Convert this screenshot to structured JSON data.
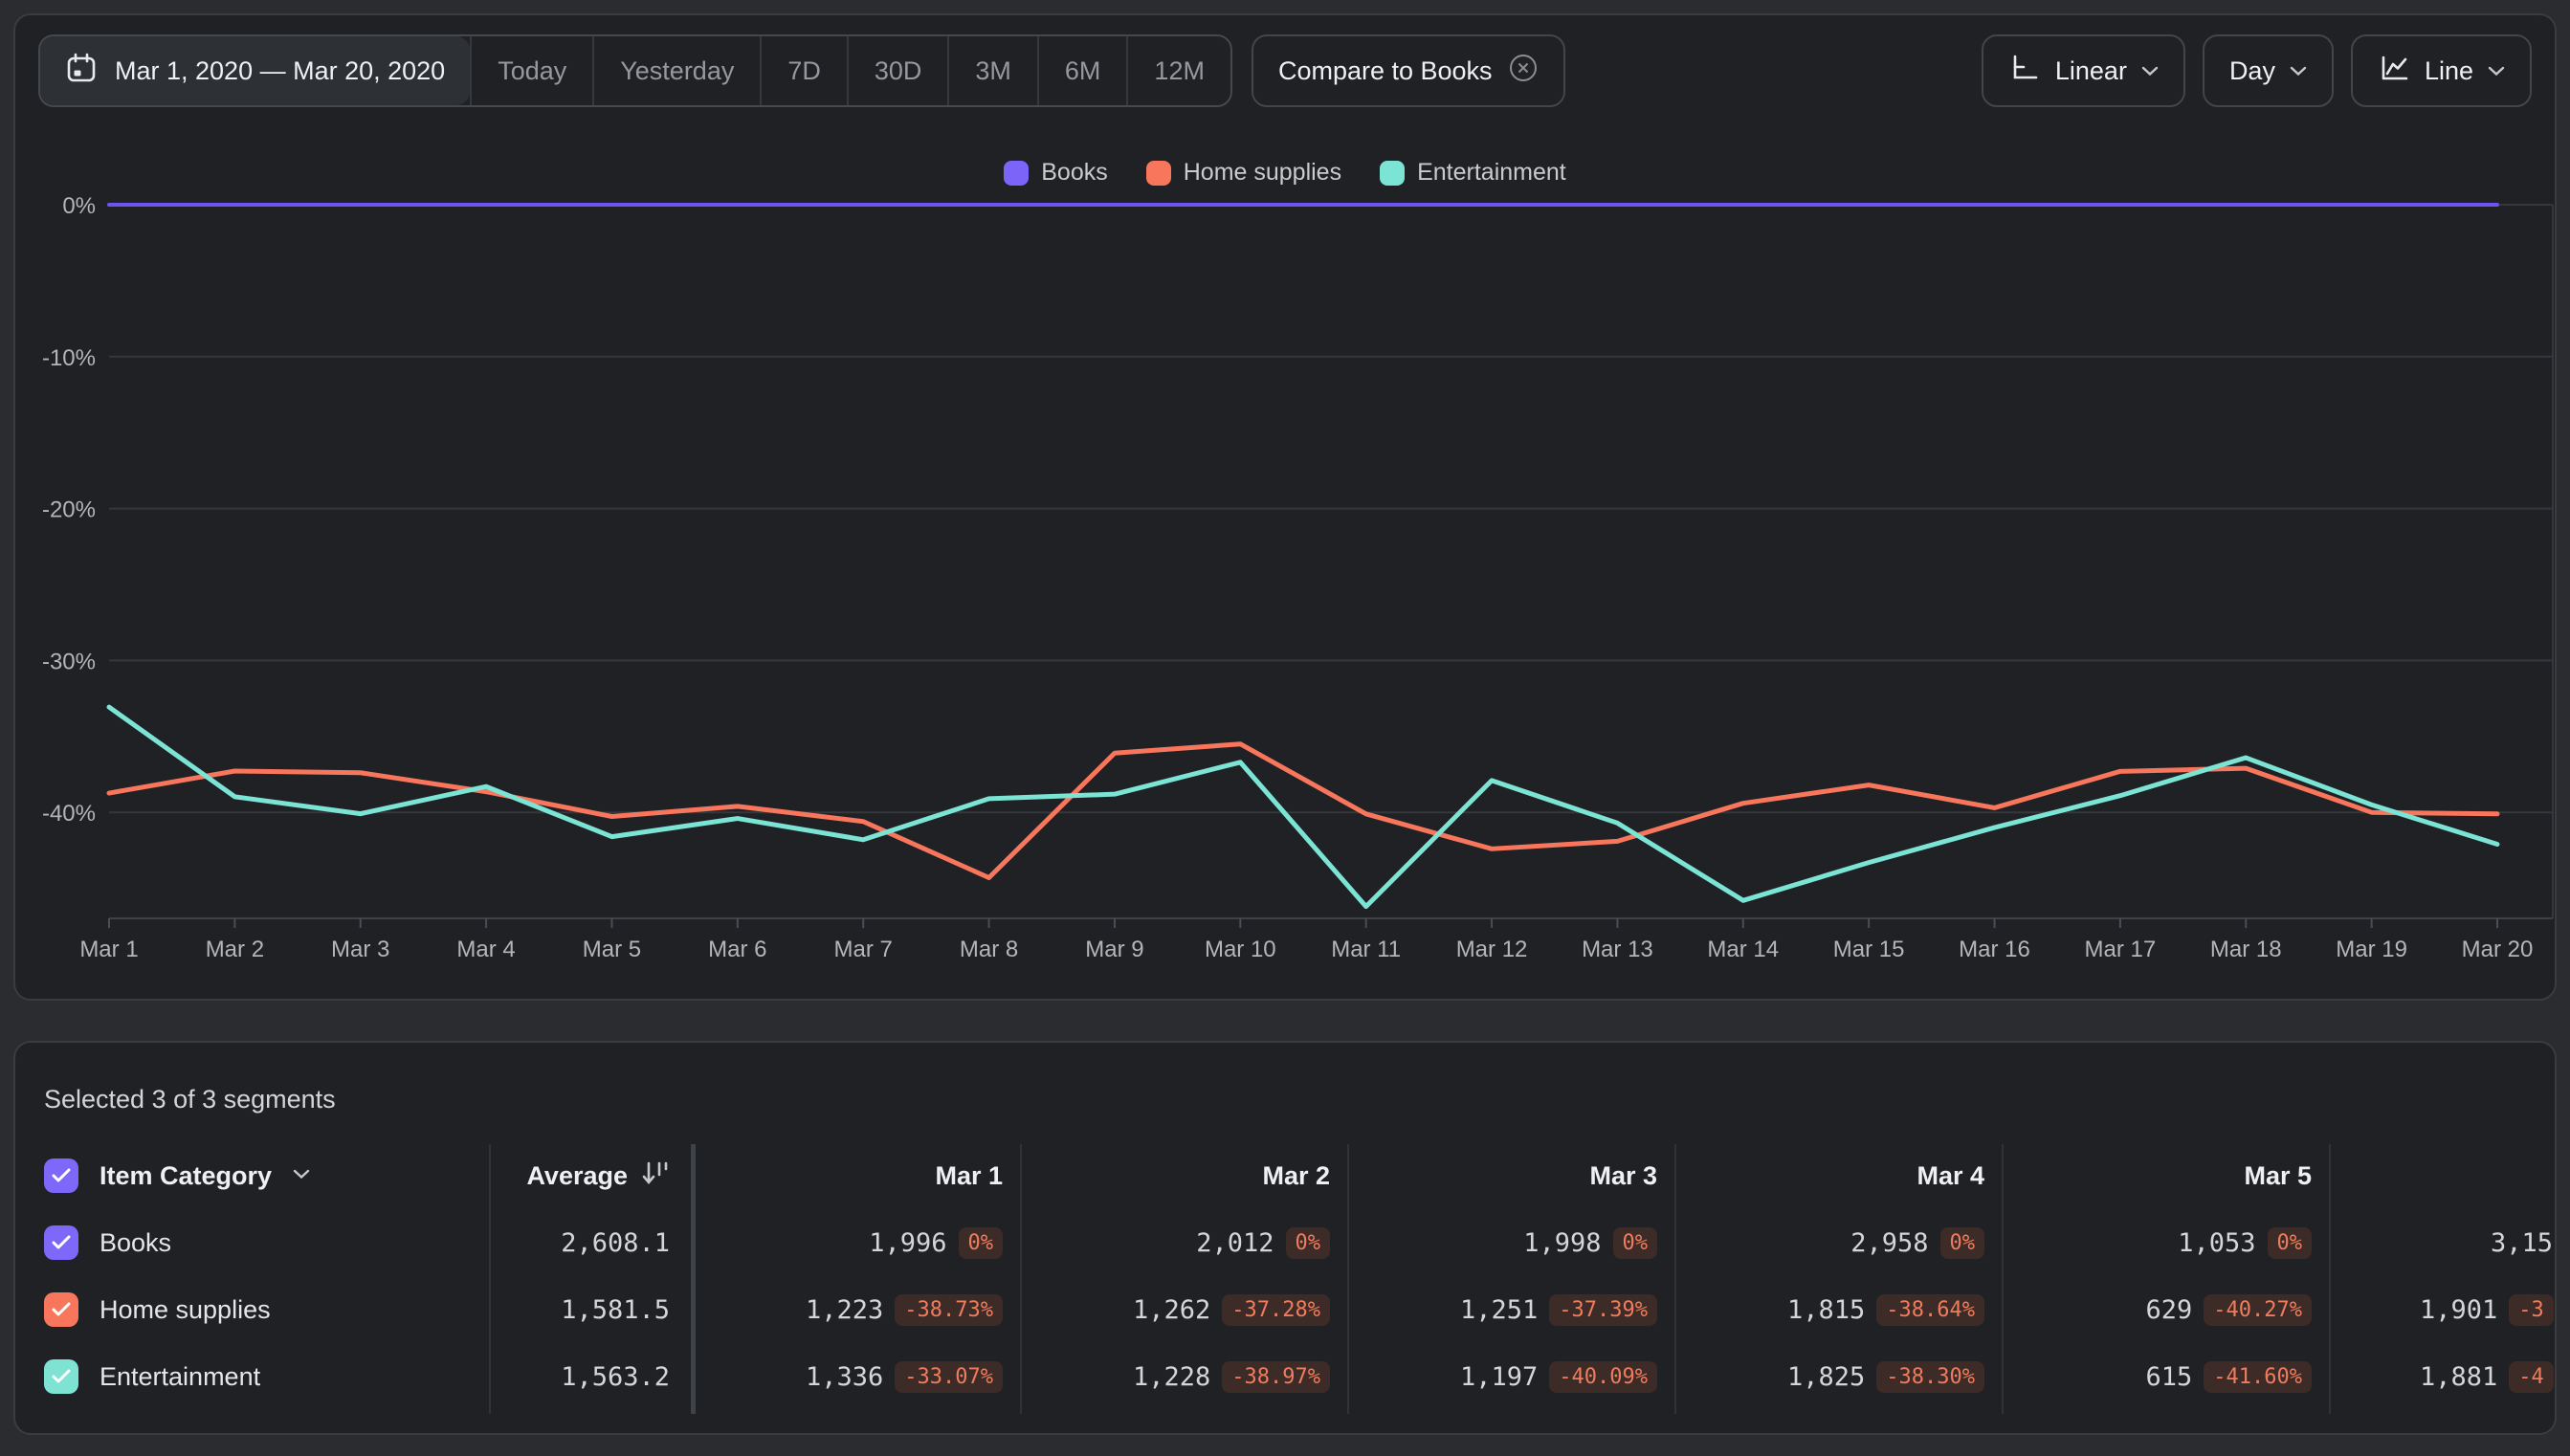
{
  "toolbar": {
    "date_range": "Mar 1, 2020 — Mar 20, 2020",
    "presets": [
      "Today",
      "Yesterday",
      "7D",
      "30D",
      "3M",
      "6M",
      "12M"
    ],
    "compare_chip": "Compare to Books",
    "scale_button": "Linear",
    "granularity_button": "Day",
    "chart_type_button": "Line"
  },
  "legend": {
    "items": [
      {
        "label": "Books",
        "color": "#7c64f9"
      },
      {
        "label": "Home supplies",
        "color": "#f8765c"
      },
      {
        "label": "Entertainment",
        "color": "#7ce4d4"
      }
    ]
  },
  "chart_data": {
    "type": "line",
    "x": [
      "Mar 1",
      "Mar 2",
      "Mar 3",
      "Mar 4",
      "Mar 5",
      "Mar 6",
      "Mar 7",
      "Mar 8",
      "Mar 9",
      "Mar 10",
      "Mar 11",
      "Mar 12",
      "Mar 13",
      "Mar 14",
      "Mar 15",
      "Mar 16",
      "Mar 17",
      "Mar 18",
      "Mar 19",
      "Mar 20"
    ],
    "unit": "%",
    "ylim": [
      -47,
      0
    ],
    "yticks": [
      "0%",
      "-10%",
      "-20%",
      "-30%",
      "-40%"
    ],
    "grid": true,
    "legend_position": "top-center",
    "series": [
      {
        "name": "Books",
        "color": "#6b54f2",
        "values": [
          0,
          0,
          0,
          0,
          0,
          0,
          0,
          0,
          0,
          0,
          0,
          0,
          0,
          0,
          0,
          0,
          0,
          0,
          0,
          0
        ]
      },
      {
        "name": "Home supplies",
        "color": "#f8765c",
        "values": [
          -38.73,
          -37.28,
          -37.39,
          -38.64,
          -40.27,
          -39.6,
          -40.6,
          -44.3,
          -36.1,
          -35.5,
          -40.1,
          -42.4,
          -41.9,
          -39.4,
          -38.2,
          -39.7,
          -37.3,
          -37.1,
          -40.0,
          -40.1
        ]
      },
      {
        "name": "Entertainment",
        "color": "#7ce4d4",
        "values": [
          -33.07,
          -38.97,
          -40.09,
          -38.3,
          -41.6,
          -40.4,
          -41.8,
          -39.1,
          -38.8,
          -36.7,
          -46.2,
          -37.9,
          -40.7,
          -45.8,
          -43.3,
          -41.0,
          -38.9,
          -36.4,
          -39.5,
          -42.1
        ]
      }
    ]
  },
  "table": {
    "selected_label": "Selected 3 of 3 segments",
    "category_header": "Item Category",
    "average_header": "Average",
    "day_headers": [
      "Mar 1",
      "Mar 2",
      "Mar 3",
      "Mar 4",
      "Mar 5"
    ],
    "last_column_header": "",
    "badge_color": "#ef7c5e",
    "rows": [
      {
        "name": "Books",
        "checkbox_color": "#7d68fa",
        "average": "2,608.1",
        "cells": [
          [
            "1,996",
            "0%"
          ],
          [
            "2,012",
            "0%"
          ],
          [
            "1,998",
            "0%"
          ],
          [
            "2,958",
            "0%"
          ],
          [
            "1,053",
            "0%"
          ]
        ],
        "cut_cell": {
          "value": "3,15",
          "pct": ""
        }
      },
      {
        "name": "Home supplies",
        "checkbox_color": "#f8765c",
        "average": "1,581.5",
        "cells": [
          [
            "1,223",
            "-38.73%"
          ],
          [
            "1,262",
            "-37.28%"
          ],
          [
            "1,251",
            "-37.39%"
          ],
          [
            "1,815",
            "-38.64%"
          ],
          [
            "629",
            "-40.27%"
          ]
        ],
        "cut_cell": {
          "value": "1,901",
          "pct": "-3"
        }
      },
      {
        "name": "Entertainment",
        "checkbox_color": "#7ee3d3",
        "average": "1,563.2",
        "cells": [
          [
            "1,336",
            "-33.07%"
          ],
          [
            "1,228",
            "-38.97%"
          ],
          [
            "1,197",
            "-40.09%"
          ],
          [
            "1,825",
            "-38.30%"
          ],
          [
            "615",
            "-41.60%"
          ]
        ],
        "cut_cell": {
          "value": "1,881",
          "pct": "-4"
        }
      }
    ]
  }
}
